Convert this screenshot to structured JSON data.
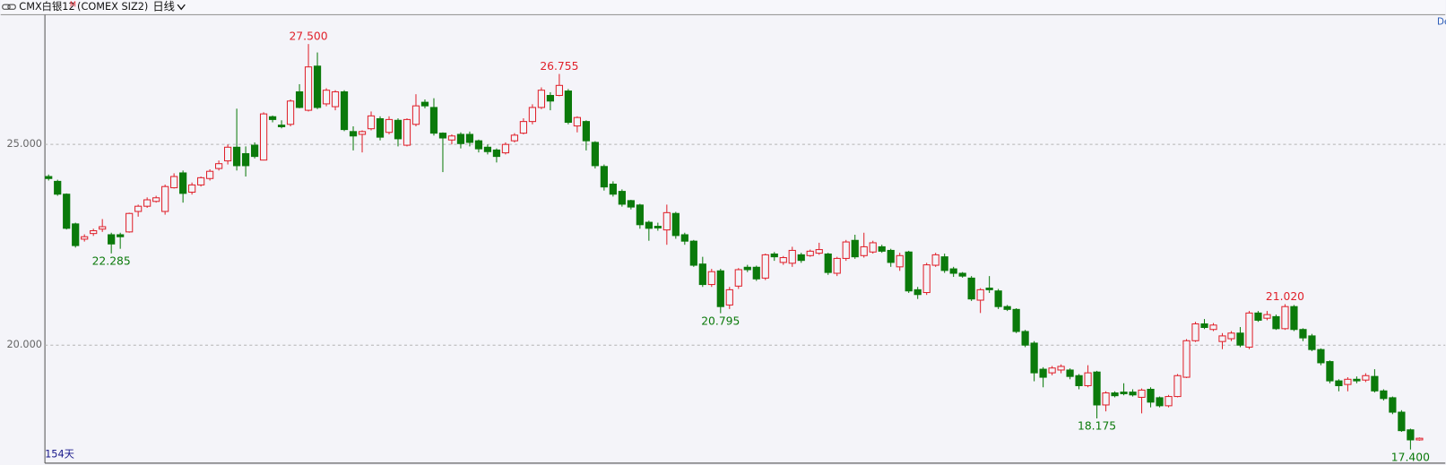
{
  "toolbar": {
    "symbol": "CMX白银12",
    "marker": "M",
    "code": "(COMEX SIZ2)",
    "period": "日线"
  },
  "chart_data": {
    "type": "candlestick",
    "open": [
      24.2,
      24.08,
      23.76,
      23.02,
      22.64,
      22.78,
      22.89,
      22.75,
      22.75,
      22.82,
      23.33,
      23.46,
      23.58,
      23.33,
      23.92,
      24.29,
      23.81,
      23.99,
      24.15,
      24.4,
      24.59,
      24.93,
      24.77,
      24.98,
      24.61,
      25.69,
      25.48,
      25.5,
      26.31,
      25.85,
      26.95,
      26.01,
      25.94,
      26.31,
      25.32,
      25.25,
      25.39,
      25.64,
      25.3,
      25.6,
      24.98,
      25.5,
      26.05,
      25.92,
      25.28,
      25.11,
      25.25,
      25.25,
      25.09,
      24.93,
      24.86,
      24.79,
      25.09,
      25.28,
      25.57,
      25.92,
      26.22,
      26.22,
      26.33,
      25.46,
      25.57,
      25.05,
      24.45,
      24.01,
      23.83,
      23.6,
      23.49,
      23.06,
      22.96,
      22.87,
      23.28,
      22.75,
      22.59,
      22.02,
      21.51,
      21.85,
      21.0,
      21.47,
      21.94,
      21.94,
      21.67,
      22.27,
      22.06,
      22.04,
      22.25,
      22.23,
      22.29,
      22.27,
      21.79,
      22.16,
      22.61,
      22.23,
      22.32,
      22.45,
      22.36,
      21.95,
      22.32,
      21.38,
      21.31,
      21.99,
      22.2,
      21.9,
      21.79,
      21.67,
      21.12,
      21.42,
      21.35,
      20.96,
      20.89,
      20.34,
      20.05,
      19.4,
      19.31,
      19.38,
      19.38,
      19.24,
      18.99,
      19.33,
      18.51,
      18.81,
      18.83,
      18.83,
      18.7,
      18.9,
      18.69,
      18.49,
      18.72,
      19.2,
      20.11,
      20.53,
      20.39,
      20.09,
      20.16,
      20.3,
      19.95,
      20.8,
      20.67,
      20.71,
      20.41,
      20.96,
      20.39,
      20.23,
      19.89,
      19.59,
      19.11,
      19.02,
      19.15,
      19.13,
      19.22,
      18.86,
      18.69,
      18.33,
      17.89,
      17.64
    ],
    "high": [
      24.25,
      24.12,
      23.78,
      23.05,
      22.76,
      22.9,
      23.14,
      22.8,
      22.8,
      23.3,
      23.5,
      23.68,
      23.72,
      24.0,
      24.28,
      24.35,
      24.05,
      24.2,
      24.38,
      24.6,
      25.0,
      25.89,
      24.95,
      25.05,
      25.8,
      25.72,
      25.6,
      26.12,
      26.5,
      27.5,
      27.29,
      26.4,
      26.35,
      26.35,
      25.45,
      25.35,
      25.82,
      25.7,
      25.7,
      25.65,
      25.65,
      26.25,
      26.12,
      26.15,
      25.3,
      25.25,
      25.3,
      25.32,
      25.12,
      25.0,
      24.9,
      25.05,
      25.28,
      25.65,
      26.0,
      26.42,
      26.3,
      26.755,
      26.38,
      25.7,
      25.6,
      25.08,
      24.5,
      24.08,
      23.88,
      23.62,
      23.52,
      23.1,
      23.05,
      23.5,
      23.32,
      22.8,
      22.62,
      22.2,
      21.9,
      21.9,
      21.45,
      21.92,
      22.0,
      21.98,
      22.28,
      22.32,
      22.22,
      22.45,
      22.3,
      22.38,
      22.55,
      22.3,
      22.2,
      22.62,
      22.75,
      22.8,
      22.6,
      22.5,
      22.4,
      22.3,
      22.35,
      21.45,
      22.05,
      22.3,
      22.28,
      21.95,
      21.82,
      21.72,
      21.42,
      21.72,
      21.4,
      21.0,
      20.92,
      20.38,
      20.1,
      19.45,
      19.48,
      19.52,
      19.42,
      19.28,
      19.5,
      19.36,
      18.85,
      18.85,
      19.05,
      18.9,
      18.92,
      18.95,
      18.72,
      18.76,
      19.28,
      20.15,
      20.58,
      20.65,
      20.55,
      20.3,
      20.35,
      20.45,
      20.85,
      20.85,
      20.85,
      20.76,
      21.02,
      21.0,
      20.42,
      20.28,
      19.92,
      19.62,
      19.15,
      19.2,
      19.22,
      19.3,
      19.4,
      18.9,
      18.72,
      18.38,
      17.92,
      17.7
    ],
    "low": [
      24.1,
      23.72,
      22.88,
      22.43,
      22.58,
      22.72,
      22.82,
      22.285,
      22.4,
      22.8,
      23.2,
      23.42,
      23.55,
      23.25,
      23.9,
      23.55,
      23.75,
      23.95,
      24.1,
      24.35,
      24.5,
      24.35,
      24.2,
      24.65,
      24.6,
      25.55,
      25.4,
      25.45,
      25.9,
      25.82,
      25.88,
      25.95,
      25.85,
      25.33,
      24.85,
      24.8,
      25.35,
      25.1,
      25.25,
      24.95,
      24.95,
      25.45,
      25.9,
      25.22,
      24.31,
      25.0,
      24.9,
      24.95,
      24.8,
      24.75,
      24.55,
      24.75,
      25.05,
      25.25,
      25.5,
      25.88,
      25.85,
      26.2,
      25.5,
      25.3,
      24.85,
      24.4,
      23.85,
      23.7,
      23.45,
      23.38,
      22.9,
      22.6,
      22.85,
      22.5,
      22.65,
      22.5,
      21.95,
      21.45,
      21.45,
      20.795,
      20.9,
      21.4,
      21.82,
      21.6,
      21.62,
      22.1,
      22.0,
      21.95,
      22.05,
      22.2,
      22.25,
      21.75,
      21.72,
      22.1,
      22.15,
      22.18,
      22.28,
      22.3,
      21.95,
      21.85,
      21.3,
      21.15,
      21.25,
      21.95,
      21.8,
      21.7,
      21.68,
      21.1,
      20.8,
      21.3,
      20.9,
      20.85,
      20.3,
      19.95,
      19.1,
      18.95,
      19.25,
      19.3,
      19.15,
      18.9,
      18.95,
      18.175,
      18.35,
      18.7,
      18.75,
      18.72,
      18.3,
      18.45,
      18.45,
      18.45,
      18.7,
      19.18,
      20.08,
      20.4,
      20.35,
      19.9,
      20.1,
      19.95,
      19.9,
      20.58,
      20.62,
      20.38,
      20.38,
      20.35,
      20.1,
      19.85,
      19.5,
      19.05,
      18.85,
      18.85,
      19.05,
      19.08,
      18.82,
      18.62,
      18.28,
      17.84,
      17.4,
      17.62
    ],
    "close": [
      24.15,
      23.76,
      22.91,
      22.48,
      22.7,
      22.85,
      22.95,
      22.52,
      22.7,
      23.28,
      23.46,
      23.62,
      23.67,
      23.95,
      24.2,
      23.78,
      23.99,
      24.17,
      24.33,
      24.52,
      24.93,
      24.47,
      24.47,
      24.7,
      25.76,
      25.62,
      25.44,
      26.08,
      25.92,
      26.93,
      25.92,
      26.35,
      26.31,
      25.37,
      25.21,
      25.32,
      25.71,
      25.18,
      25.62,
      25.14,
      25.62,
      25.96,
      25.96,
      25.28,
      25.16,
      25.21,
      25.02,
      25.05,
      24.89,
      24.82,
      24.7,
      25.0,
      25.23,
      25.57,
      25.92,
      26.35,
      26.08,
      26.47,
      25.55,
      25.67,
      25.09,
      24.47,
      23.94,
      23.76,
      23.51,
      23.44,
      23.0,
      22.91,
      22.92,
      23.3,
      22.73,
      22.59,
      21.99,
      21.51,
      21.83,
      20.96,
      21.38,
      21.88,
      21.88,
      21.65,
      22.25,
      22.2,
      22.18,
      22.36,
      22.11,
      22.34,
      22.38,
      21.81,
      22.16,
      22.57,
      22.2,
      22.45,
      22.55,
      22.34,
      22.06,
      22.23,
      21.35,
      21.26,
      22.0,
      22.25,
      21.86,
      21.79,
      21.72,
      21.15,
      21.38,
      21.38,
      20.96,
      20.89,
      20.34,
      20.0,
      19.31,
      19.2,
      19.43,
      19.47,
      19.22,
      18.99,
      19.31,
      18.51,
      18.81,
      18.74,
      18.79,
      18.76,
      18.88,
      18.58,
      18.49,
      18.72,
      19.24,
      20.11,
      20.53,
      20.44,
      20.5,
      20.23,
      20.3,
      20.0,
      20.8,
      20.62,
      20.76,
      20.41,
      20.96,
      20.39,
      20.18,
      19.89,
      19.56,
      19.11,
      18.99,
      19.15,
      19.11,
      19.24,
      18.86,
      18.67,
      18.33,
      17.87,
      17.64,
      17.68
    ],
    "up_color": "#e0212b",
    "down_color": "#0b7a0b",
    "ylim": [
      17.06,
      28.23
    ],
    "yticks": [
      {
        "value": 20,
        "label": "20.000"
      },
      {
        "value": 25,
        "label": "25.000"
      }
    ],
    "grid": true,
    "annotations": [
      {
        "label": "27.500",
        "value": 27.5
      },
      {
        "label": "26.755",
        "value": 26.755
      },
      {
        "label": "21.020",
        "value": 21.02
      },
      {
        "label": "22.285",
        "value": 22.285
      },
      {
        "label": "20.795",
        "value": 20.795
      },
      {
        "label": "18.175",
        "value": 18.175
      },
      {
        "label": "17.400",
        "value": 17.4
      }
    ],
    "count_label": "154天",
    "corner_text": "De"
  }
}
